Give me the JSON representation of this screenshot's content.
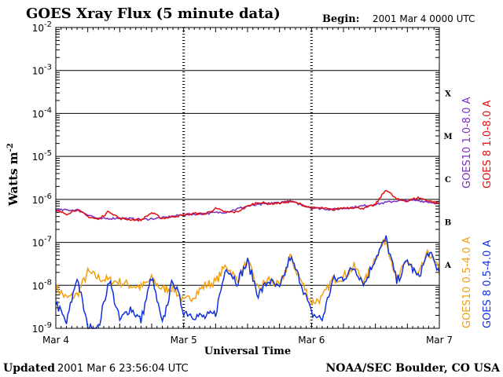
{
  "header": {
    "title": "GOES Xray Flux (5 minute data)",
    "begin_label": "Begin:",
    "begin_value": "2001 Mar 4 0000 UTC"
  },
  "footer": {
    "updated_label": "Updated",
    "updated_value": "2001 Mar  6 23:56:04 UTC",
    "credit": "NOAA/SEC Boulder, CO USA"
  },
  "chart_data": {
    "type": "line",
    "title": "GOES Xray Flux (5 minute data)",
    "xlabel": "Universal Time",
    "ylabel": "Watts m",
    "ylabel_sup": "-2",
    "yscale": "log",
    "ylim": [
      1e-09,
      0.01
    ],
    "xlim": [
      "2001-03-04 00:00",
      "2001-03-07 00:00"
    ],
    "x_ticks": [
      "Mar 4",
      "Mar 5",
      "Mar 6",
      "Mar 7"
    ],
    "y_ticks": [
      {
        "base": "10",
        "exp": "-9",
        "value": 1e-09
      },
      {
        "base": "10",
        "exp": "-8",
        "value": 1e-08
      },
      {
        "base": "10",
        "exp": "-7",
        "value": 1e-07
      },
      {
        "base": "10",
        "exp": "-6",
        "value": 1e-06
      },
      {
        "base": "10",
        "exp": "-5",
        "value": 1e-05
      },
      {
        "base": "10",
        "exp": "-4",
        "value": 0.0001
      },
      {
        "base": "10",
        "exp": "-3",
        "value": 0.001
      },
      {
        "base": "10",
        "exp": "-2",
        "value": 0.01
      }
    ],
    "flare_classes": [
      {
        "label": "A",
        "value": 3e-08
      },
      {
        "label": "B",
        "value": 3e-07
      },
      {
        "label": "C",
        "value": 3e-06
      },
      {
        "label": "M",
        "value": 3e-05
      },
      {
        "label": "X",
        "value": 0.0003
      }
    ],
    "grid": true,
    "legend": [
      {
        "label": "GOES10 1.0-8.0 A",
        "color": "#7b2fbf",
        "position": "right"
      },
      {
        "label": "GOES 8 1.0-8.0 A",
        "color": "#e01010",
        "position": "right"
      },
      {
        "label": "GOES10 0.5-4.0 A",
        "color": "#f0a010",
        "position": "right"
      },
      {
        "label": "GOES 8 0.5-4.0 A",
        "color": "#1030e0",
        "position": "right"
      }
    ],
    "series": [
      {
        "name": "GOES 8 1.0-8.0 A",
        "color": "#e01010",
        "x_hours": [
          0,
          2,
          4,
          6,
          8,
          10,
          12,
          14,
          16,
          18,
          20,
          22,
          24,
          26,
          28,
          30,
          32,
          34,
          36,
          38,
          40,
          42,
          44,
          46,
          48,
          50,
          52,
          54,
          56,
          58,
          60,
          62,
          64,
          66,
          68,
          70,
          72
        ],
        "values": [
          5.5e-07,
          4.6e-07,
          5.8e-07,
          4e-07,
          3.4e-07,
          5.3e-07,
          3.6e-07,
          3.4e-07,
          3.3e-07,
          4.9e-07,
          3.6e-07,
          4e-07,
          4.3e-07,
          4.7e-07,
          4.6e-07,
          6.1e-07,
          5e-07,
          5.1e-07,
          6.9e-07,
          8.6e-07,
          7.9e-07,
          8.2e-07,
          9e-07,
          7.7e-07,
          6.3e-07,
          6.3e-07,
          5.7e-07,
          6.4e-07,
          6.5e-07,
          6.2e-07,
          7.6e-07,
          1.7e-06,
          1e-06,
          9.2e-07,
          1.1e-06,
          9.3e-07,
          8e-07
        ]
      },
      {
        "name": "GOES10 1.0-8.0 A",
        "color": "#7b2fbf",
        "x_hours": [
          0,
          4,
          8,
          12,
          16,
          20,
          24,
          28,
          32,
          36,
          40,
          44,
          48,
          52,
          56,
          60,
          64,
          68,
          72
        ],
        "values": [
          5.6e-07,
          5.7e-07,
          3.5e-07,
          3.7e-07,
          3.4e-07,
          3.7e-07,
          4.4e-07,
          4.7e-07,
          5.1e-07,
          7e-07,
          8e-07,
          9e-07,
          6.4e-07,
          5.8e-07,
          6.6e-07,
          7.7e-07,
          9.3e-07,
          9.4e-07,
          8.1e-07
        ]
      },
      {
        "name": "GOES 8 0.5-4.0 A",
        "color": "#1030e0",
        "x_hours": [
          0,
          2,
          4,
          6,
          8,
          10,
          12,
          14,
          16,
          18,
          20,
          22,
          24,
          26,
          28,
          30,
          32,
          34,
          36,
          38,
          40,
          42,
          44,
          46,
          48,
          50,
          52,
          54,
          56,
          58,
          60,
          62,
          64,
          66,
          68,
          70,
          72
        ],
        "values": [
          4e-09,
          1.3e-09,
          1.6e-08,
          1e-09,
          1e-09,
          1.4e-08,
          1.5e-09,
          3e-09,
          1.5e-09,
          1.6e-08,
          1.2e-09,
          1.4e-08,
          2.5e-09,
          2e-09,
          1.8e-09,
          2.2e-09,
          2.8e-08,
          1.2e-08,
          3.5e-08,
          6e-09,
          1.3e-08,
          8e-09,
          4.5e-08,
          1.2e-08,
          2.2e-09,
          1.6e-09,
          1.3e-08,
          1.5e-08,
          2.6e-08,
          1.1e-08,
          4.5e-08,
          1.2e-07,
          1.2e-08,
          3.8e-08,
          1.5e-08,
          6e-08,
          2e-08
        ]
      },
      {
        "name": "GOES10 0.5-4.0 A",
        "color": "#f0a010",
        "x_hours": [
          0,
          2,
          4,
          6,
          8,
          10,
          12,
          14,
          16,
          18,
          20,
          22,
          24,
          26,
          28,
          30,
          32,
          34,
          36,
          38,
          40,
          42,
          44,
          46,
          48,
          50,
          52,
          54,
          56,
          58,
          60,
          62,
          64,
          66,
          68,
          70,
          72
        ],
        "values": [
          9e-09,
          5e-09,
          6e-09,
          2e-08,
          1.5e-08,
          1.3e-08,
          1.2e-08,
          1e-08,
          9e-09,
          1.4e-08,
          8e-09,
          9e-09,
          4e-09,
          6e-09,
          1e-08,
          1.2e-08,
          3e-08,
          1.3e-08,
          3.6e-08,
          8e-09,
          1.4e-08,
          9e-09,
          4.6e-08,
          1.3e-08,
          4e-09,
          5e-09,
          1.4e-08,
          1.6e-08,
          2.7e-08,
          1.2e-08,
          4.6e-08,
          1.2e-07,
          1.3e-08,
          3.9e-08,
          1.6e-08,
          6.1e-08,
          2.1e-08
        ]
      }
    ]
  }
}
